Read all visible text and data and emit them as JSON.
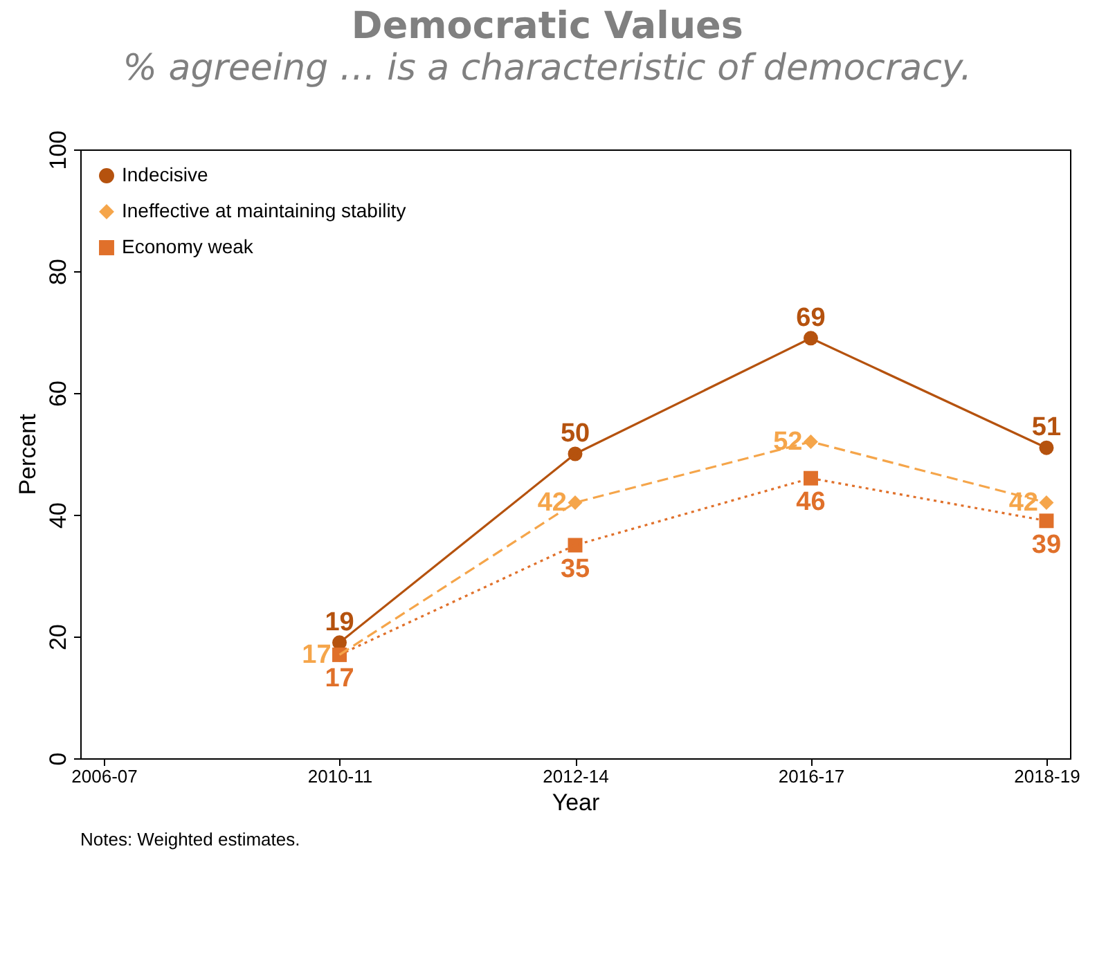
{
  "chart_data": {
    "type": "line",
    "title": "Democratic Values",
    "subtitle": "% agreeing … is a characteristic of democracy.",
    "xlabel": "Year",
    "ylabel": "Percent",
    "categories": [
      "2006-07",
      "2010-11",
      "2012-14",
      "2016-17",
      "2018-19"
    ],
    "series": [
      {
        "name": "Indecisive",
        "color": "#b5520e",
        "values": [
          null,
          19,
          50,
          69,
          51
        ],
        "marker": "circle",
        "line_style": "solid"
      },
      {
        "name": "Ineffective at maintaining stability",
        "color": "#f5a54a",
        "values": [
          null,
          17,
          42,
          52,
          42
        ],
        "marker": "diamond",
        "line_style": "dashed"
      },
      {
        "name": "Economy weak",
        "color": "#e0702a",
        "values": [
          null,
          17,
          35,
          46,
          39
        ],
        "marker": "square",
        "line_style": "dotted"
      }
    ],
    "ylim": [
      0,
      100
    ],
    "yticks": [
      0,
      20,
      40,
      60,
      80,
      100
    ],
    "grid": false,
    "legend": "top left",
    "data_labels": true,
    "annotations": [
      "Notes: Weighted estimates."
    ]
  }
}
